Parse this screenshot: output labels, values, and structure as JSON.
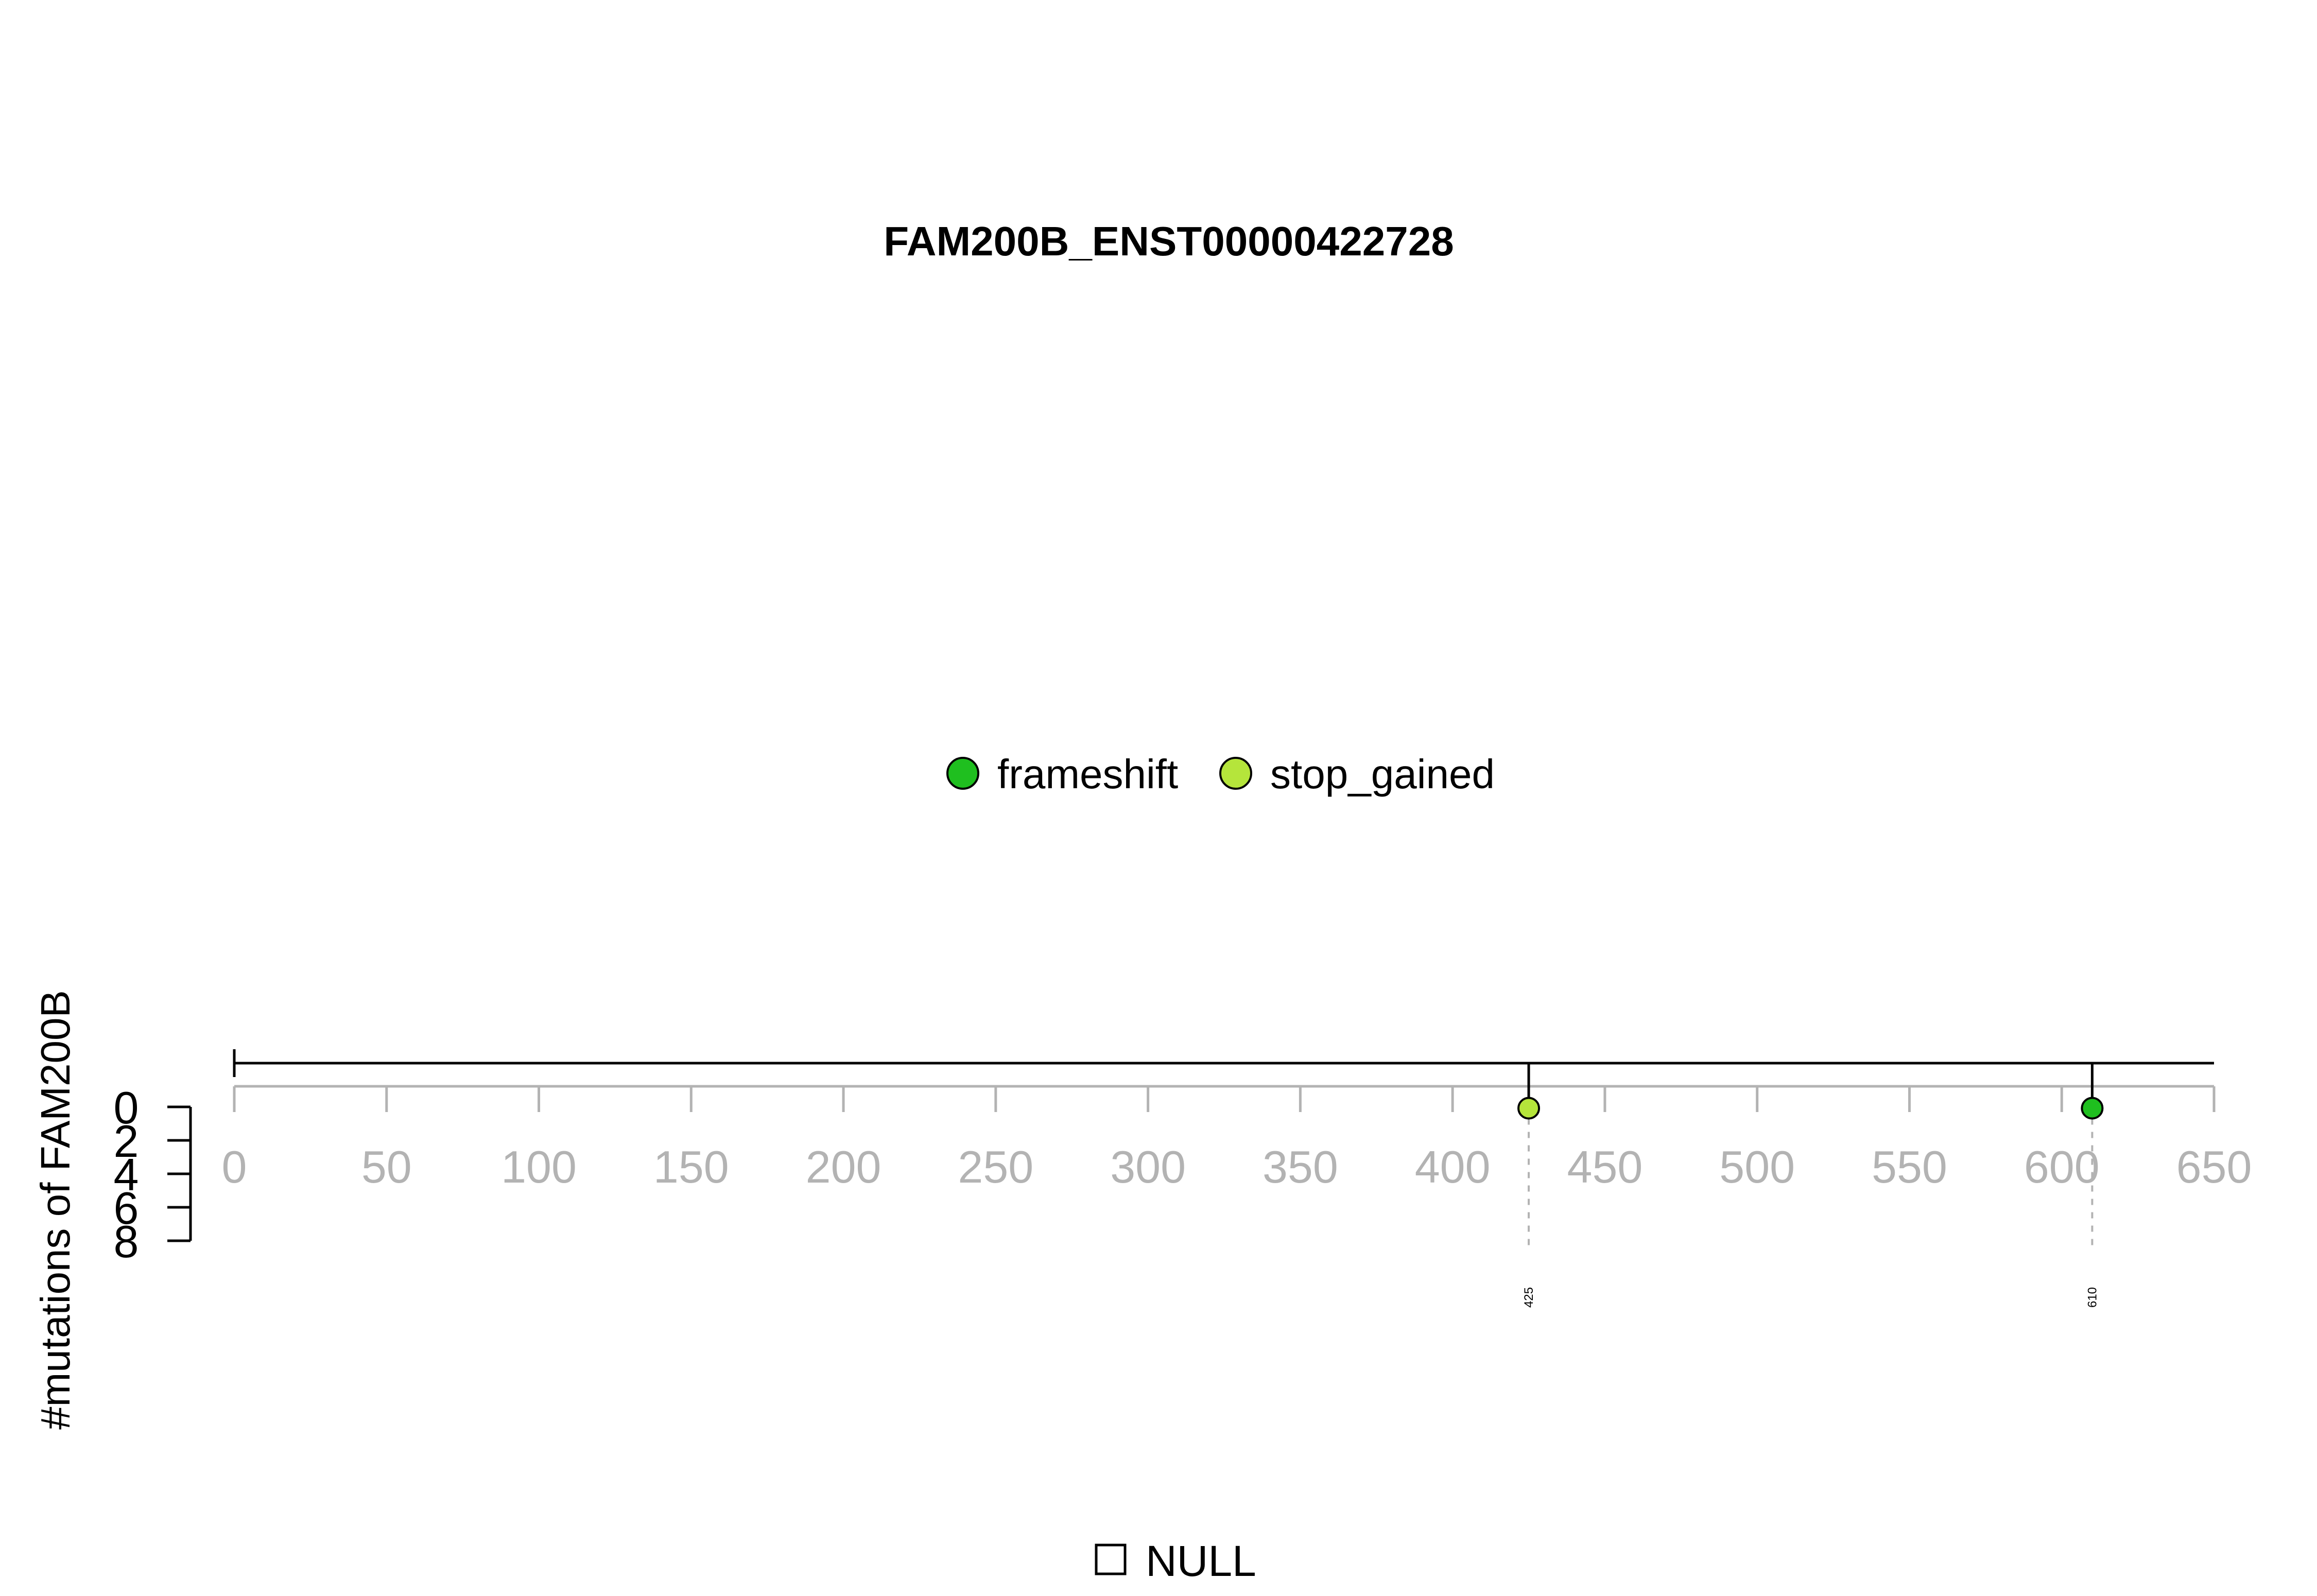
{
  "chart_data": {
    "type": "lollipop",
    "title": "FAM200B_ENST00000422728",
    "ylabel": "#mutations of FAM200B",
    "xlim": [
      0,
      650
    ],
    "x_ticks": [
      0,
      50,
      100,
      150,
      200,
      250,
      300,
      350,
      400,
      450,
      500,
      550,
      600,
      650
    ],
    "ylim": [
      0,
      8
    ],
    "y_ticks": [
      0,
      2,
      4,
      6,
      8
    ],
    "protein_length": 650,
    "legend": [
      {
        "name": "frameshift",
        "color": "#1fbf1f"
      },
      {
        "name": "stop_gained",
        "color": "#b5e53b"
      }
    ],
    "mutations": [
      {
        "position": 425,
        "label": "425",
        "type": "stop_gained",
        "count": 1,
        "color": "#b5e53b"
      },
      {
        "position": 610,
        "label": "610",
        "type": "frameshift",
        "count": 1,
        "color": "#1fbf1f"
      }
    ],
    "bottom_legend": {
      "label": "NULL"
    }
  }
}
